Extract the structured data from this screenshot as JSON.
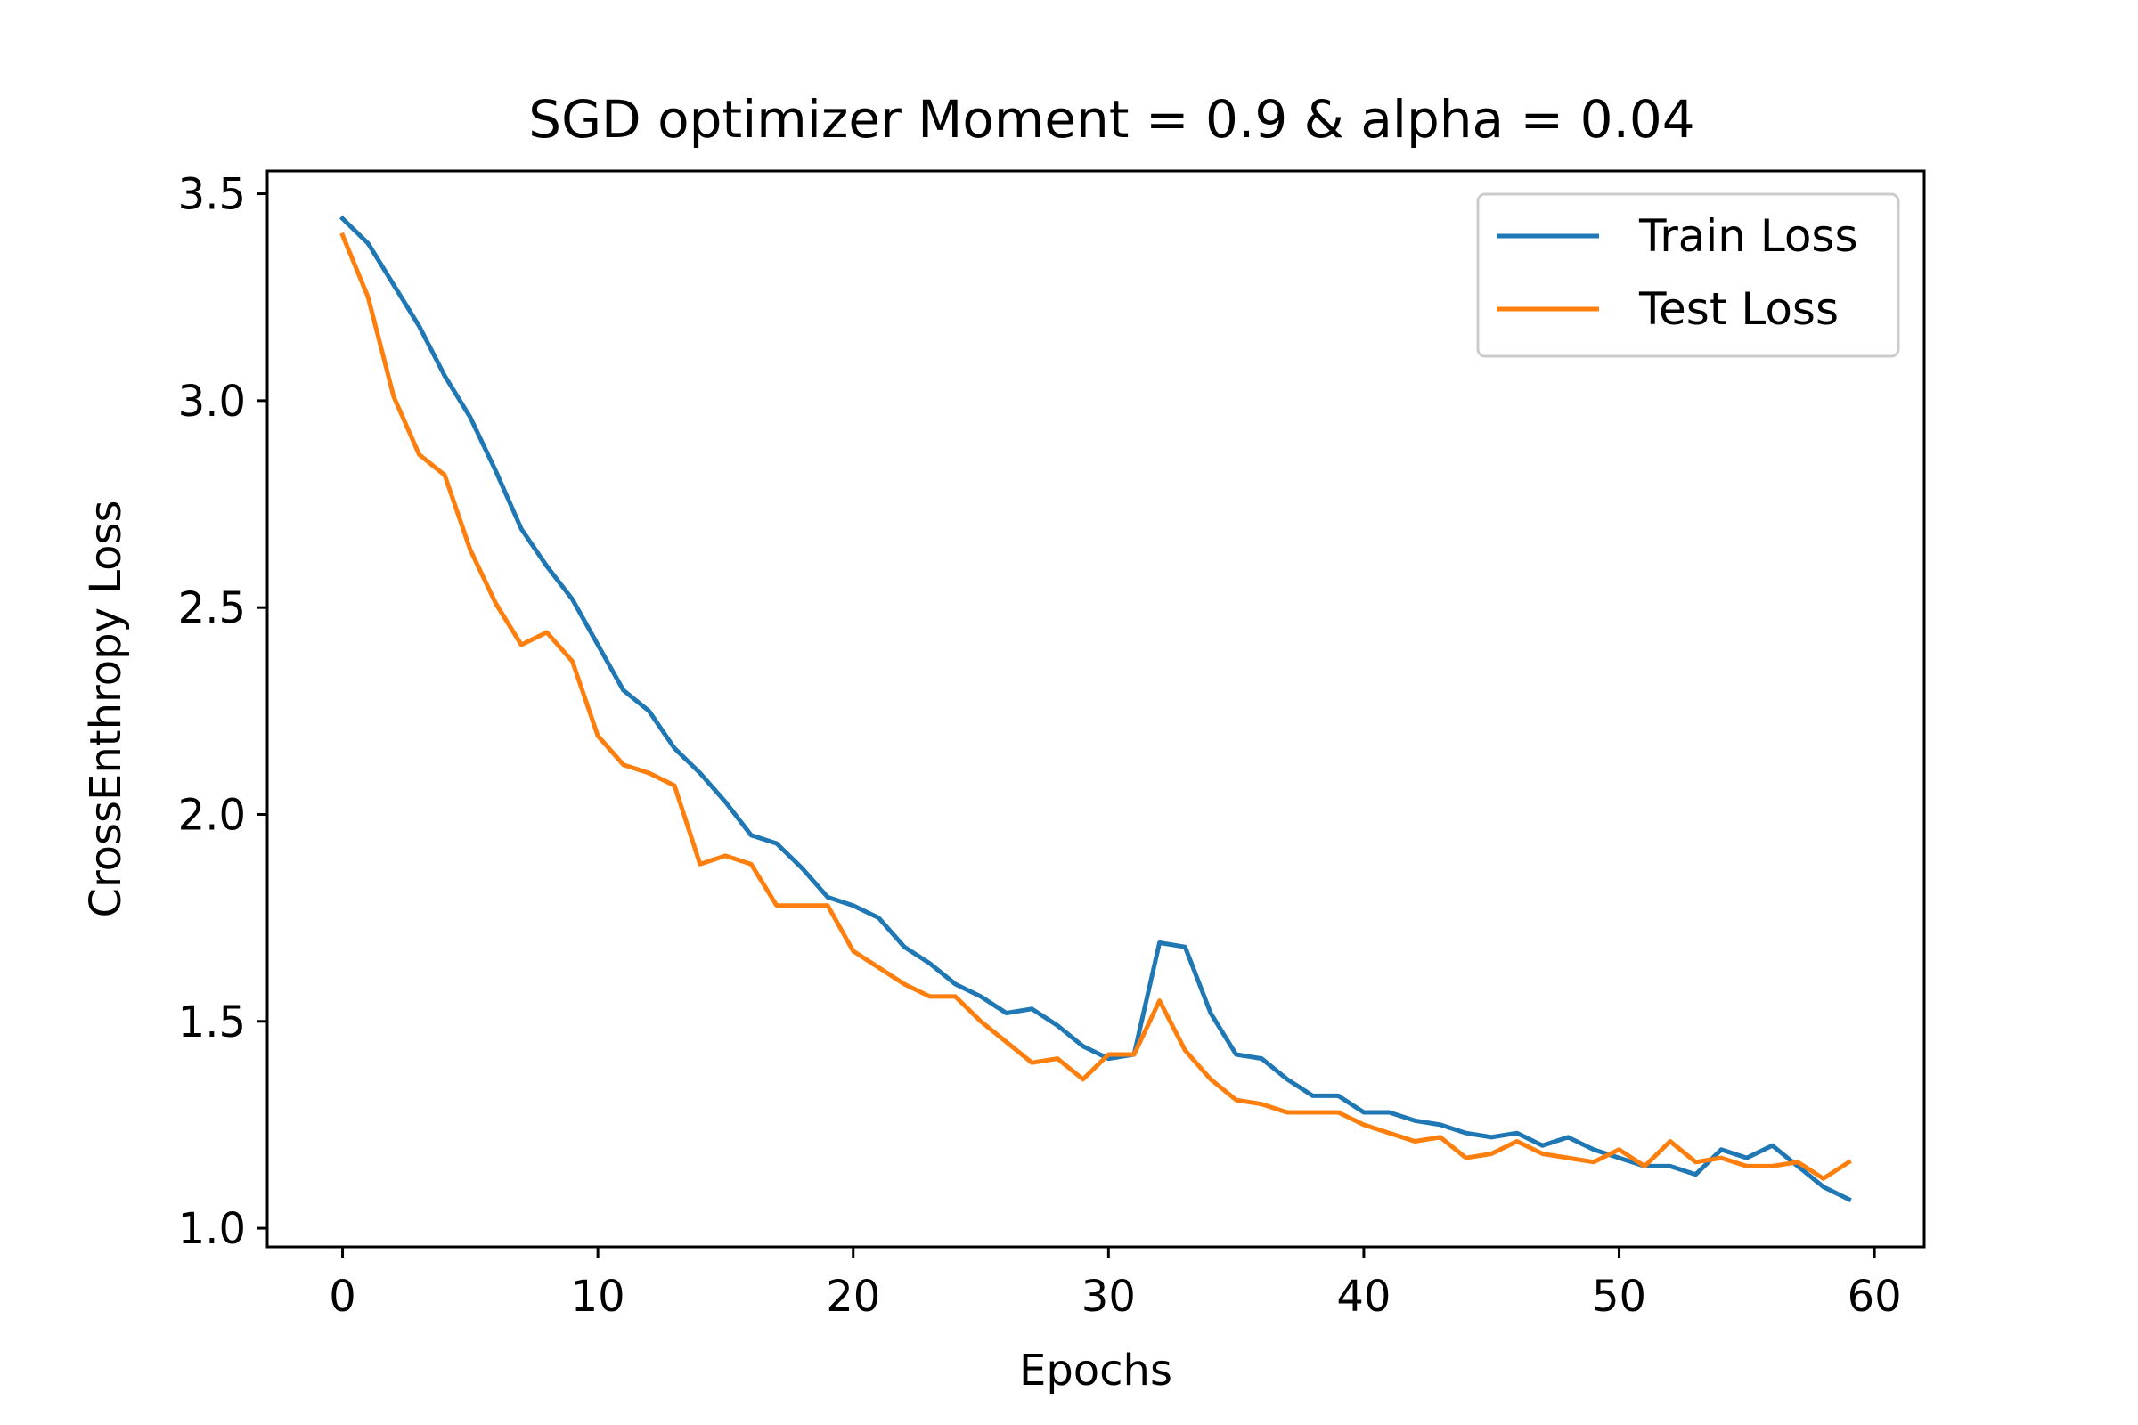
{
  "chart_data": {
    "type": "line",
    "title": "SGD optimizer Moment = 0.9 & alpha = 0.04",
    "xlabel": "Epochs",
    "ylabel": "CrossEnthropy Loss",
    "xlim": [
      -2.95,
      61.95
    ],
    "ylim": [
      0.955,
      3.555
    ],
    "xticks": [
      0,
      10,
      20,
      30,
      40,
      50,
      60
    ],
    "xtick_labels": [
      "0",
      "10",
      "20",
      "30",
      "40",
      "50",
      "60"
    ],
    "yticks": [
      1.0,
      1.5,
      2.0,
      2.5,
      3.0,
      3.5
    ],
    "ytick_labels": [
      "1.0",
      "1.5",
      "2.0",
      "2.5",
      "3.0",
      "3.5"
    ],
    "grid": false,
    "legend_position": "upper right",
    "series": [
      {
        "name": "Train Loss",
        "color": "#1f77b4",
        "x": [
          0,
          1,
          2,
          3,
          4,
          5,
          6,
          7,
          8,
          9,
          10,
          11,
          12,
          13,
          14,
          15,
          16,
          17,
          18,
          19,
          20,
          21,
          22,
          23,
          24,
          25,
          26,
          27,
          28,
          29,
          30,
          31,
          32,
          33,
          34,
          35,
          36,
          37,
          38,
          39,
          40,
          41,
          42,
          43,
          44,
          45,
          46,
          47,
          48,
          49,
          50,
          51,
          52,
          53,
          54,
          55,
          56,
          57,
          58,
          59
        ],
        "values": [
          3.44,
          3.38,
          3.28,
          3.18,
          3.06,
          2.96,
          2.83,
          2.69,
          2.6,
          2.52,
          2.41,
          2.3,
          2.25,
          2.16,
          2.1,
          2.03,
          1.95,
          1.93,
          1.87,
          1.8,
          1.78,
          1.75,
          1.68,
          1.64,
          1.59,
          1.56,
          1.52,
          1.53,
          1.49,
          1.44,
          1.41,
          1.42,
          1.69,
          1.68,
          1.52,
          1.42,
          1.41,
          1.36,
          1.32,
          1.32,
          1.28,
          1.28,
          1.26,
          1.25,
          1.23,
          1.22,
          1.23,
          1.2,
          1.22,
          1.19,
          1.17,
          1.15,
          1.15,
          1.13,
          1.19,
          1.17,
          1.2,
          1.15,
          1.1,
          1.07
        ]
      },
      {
        "name": "Test Loss",
        "color": "#ff7f0e",
        "x": [
          0,
          1,
          2,
          3,
          4,
          5,
          6,
          7,
          8,
          9,
          10,
          11,
          12,
          13,
          14,
          15,
          16,
          17,
          18,
          19,
          20,
          21,
          22,
          23,
          24,
          25,
          26,
          27,
          28,
          29,
          30,
          31,
          32,
          33,
          34,
          35,
          36,
          37,
          38,
          39,
          40,
          41,
          42,
          43,
          44,
          45,
          46,
          47,
          48,
          49,
          50,
          51,
          52,
          53,
          54,
          55,
          56,
          57,
          58,
          59
        ],
        "values": [
          3.4,
          3.25,
          3.01,
          2.87,
          2.82,
          2.64,
          2.51,
          2.41,
          2.44,
          2.37,
          2.19,
          2.12,
          2.1,
          2.07,
          1.88,
          1.9,
          1.88,
          1.78,
          1.78,
          1.78,
          1.67,
          1.63,
          1.59,
          1.56,
          1.56,
          1.5,
          1.45,
          1.4,
          1.41,
          1.36,
          1.42,
          1.42,
          1.55,
          1.43,
          1.36,
          1.31,
          1.3,
          1.28,
          1.28,
          1.28,
          1.25,
          1.23,
          1.21,
          1.22,
          1.17,
          1.18,
          1.21,
          1.18,
          1.17,
          1.16,
          1.19,
          1.15,
          1.21,
          1.16,
          1.17,
          1.15,
          1.15,
          1.16,
          1.12,
          1.16
        ]
      }
    ]
  }
}
